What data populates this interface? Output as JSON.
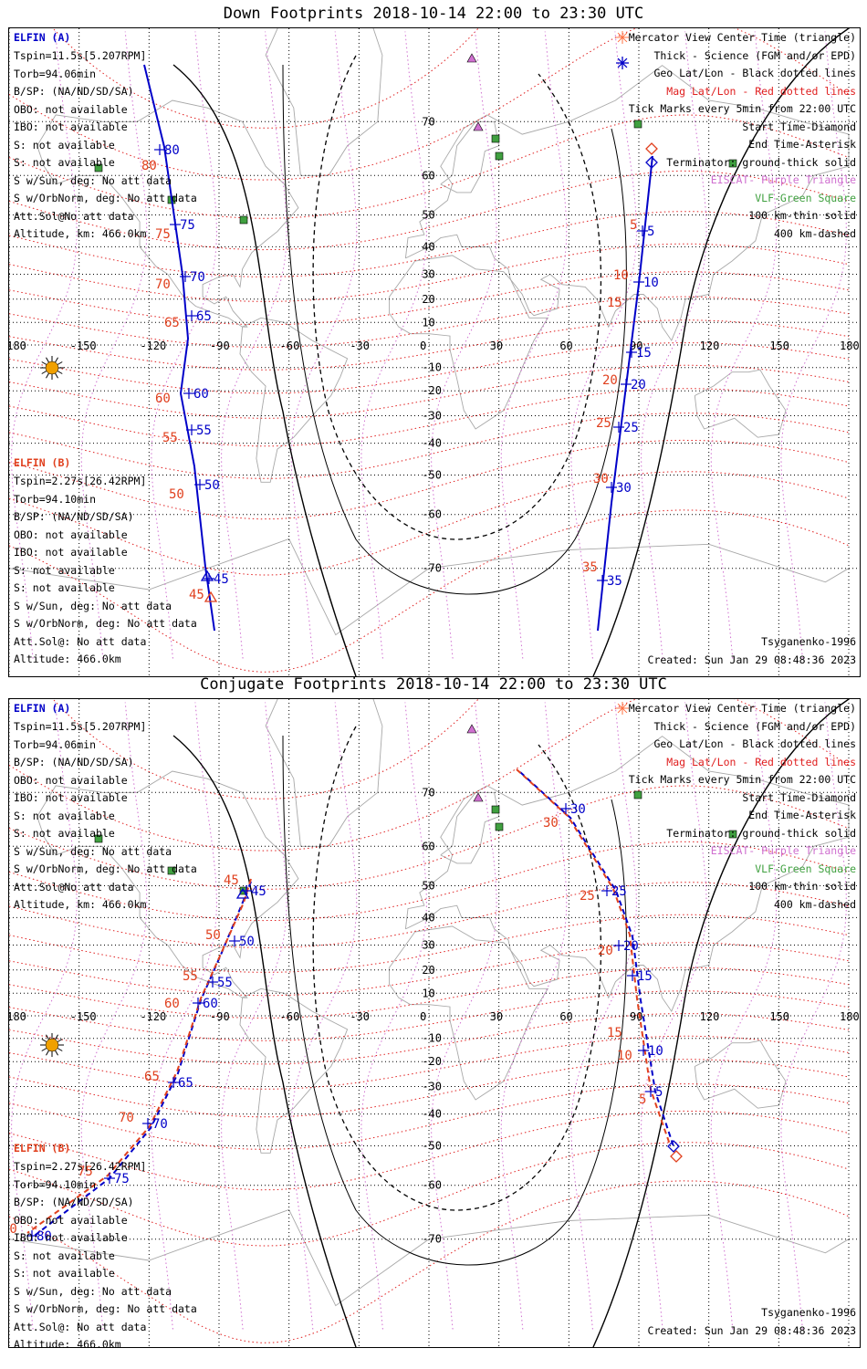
{
  "titles": {
    "top": "Down Footprints 2018-10-14 22:00 to 23:30 UTC",
    "bottom": "Conjugate Footprints 2018-10-14 22:00 to 23:30 UTC"
  },
  "elfin_a": {
    "name": "ELFIN (A)",
    "lines": [
      "Tspin=11.5s[5.207RPM]",
      "Torb=94.06min",
      "B/SP: (NA/ND/SD/SA)",
      "OBO: not available",
      "IBO: not available",
      "S: not available",
      "S: not available",
      "S w/Sun, deg: No att data",
      "S w/OrbNorm, deg: No att data",
      "Att.Sol@No att data",
      "Altitude, km: 466.0km"
    ]
  },
  "elfin_b": {
    "name": "ELFIN (B)",
    "lines": [
      "Tspin=2.27s[26.42RPM]",
      "Torb=94.10min",
      "B/SP: (NA/ND/SD/SA)",
      "OBO: not available",
      "IBO: not available",
      "S: not available",
      "S: not available",
      "S w/Sun, deg: No att data",
      "S w/OrbNorm, deg: No att data",
      "Att.Sol@: No att data",
      "Altitude: 466.0km"
    ]
  },
  "legend": [
    {
      "text": "Mercator View Center Time (triangle)",
      "color": "#000000"
    },
    {
      "text": "Thick - Science (FGM and/or EPD)",
      "color": "#000000"
    },
    {
      "text": "Geo Lat/Lon - Black dotted lines",
      "color": "#000000"
    },
    {
      "text": "Mag Lat/Lon - Red dotted lines",
      "color": "#e02020"
    },
    {
      "text": "Tick Marks every 5min from 22:00 UTC",
      "color": "#000000"
    },
    {
      "text": "Start Time-Diamond",
      "color": "#000000"
    },
    {
      "text": "End Time-Asterisk",
      "color": "#000000"
    },
    {
      "text": "Terminator: ground-thick solid",
      "color": "#000000"
    },
    {
      "text": "EISCAT- Purple Triangle",
      "color": "#d070d0"
    },
    {
      "text": "VLF-Green Square",
      "color": "#40a040"
    },
    {
      "text": "100 km-thin solid",
      "color": "#000000"
    },
    {
      "text": "400 km-dashed",
      "color": "#000000"
    }
  ],
  "model": "Tsyganenko-1996",
  "created": "Created: Sun Jan 29 08:48:36 2023",
  "axes": {
    "lon_labels": [
      "-180",
      "-150",
      "-120",
      "-90",
      "-60",
      "-30",
      "0",
      "30",
      "60",
      "90",
      "120",
      "150",
      "180"
    ],
    "lat_labels": [
      "70",
      "60",
      "50",
      "40",
      "30",
      "20",
      "10",
      "0",
      "-10",
      "-20",
      "-30",
      "-40",
      "-50",
      "-60",
      "-70"
    ]
  },
  "colors": {
    "elfin_a": "#0000c8",
    "elfin_b": "#e0401e",
    "mag_grid": "#e02020",
    "eiscat": "#d070d0",
    "vlf": "#40a040",
    "sun": "#f0a000"
  },
  "down_tracks": {
    "west_a_ticks": [
      "80",
      "75",
      "70",
      "65",
      "60",
      "55",
      "50",
      "45"
    ],
    "west_b_ticks": [
      "80",
      "75",
      "70",
      "65",
      "60",
      "55",
      "50",
      "45"
    ],
    "east_a_ticks": [
      "5",
      "10",
      "15",
      "20",
      "25",
      "30",
      "35"
    ],
    "east_b_ticks": [
      "5",
      "10",
      "15",
      "20",
      "25",
      "30",
      "35"
    ]
  },
  "conj_tracks": {
    "west_a_ticks": [
      "45",
      "50",
      "55",
      "60",
      "65",
      "70",
      "75",
      "80"
    ],
    "west_b_ticks": [
      "45",
      "50",
      "55",
      "60",
      "65",
      "70",
      "75",
      "80"
    ],
    "east_a_ticks": [
      "30",
      "25",
      "20",
      "15",
      "10",
      "5"
    ],
    "east_b_ticks": [
      "30",
      "25",
      "20",
      "15",
      "10",
      "5"
    ]
  }
}
